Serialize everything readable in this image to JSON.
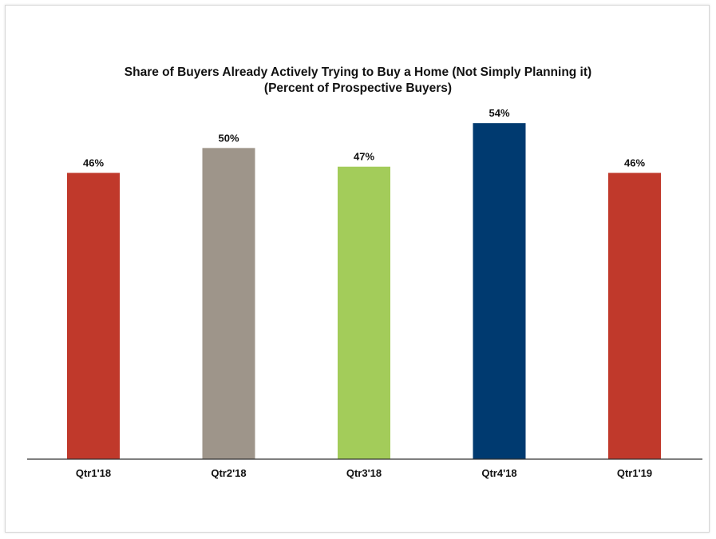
{
  "chart_data": {
    "type": "bar",
    "title": "Share of Buyers Already Actively Trying to Buy a Home (Not Simply Planning it)",
    "subtitle": "(Percent of Prospective Buyers)",
    "categories": [
      "Qtr1'18",
      "Qtr2'18",
      "Qtr3'18",
      "Qtr4'18",
      "Qtr1'19"
    ],
    "values": [
      46,
      50,
      47,
      54,
      46
    ],
    "value_labels": [
      "46%",
      "50%",
      "47%",
      "54%",
      "46%"
    ],
    "colors": [
      "#c0392b",
      "#9e958a",
      "#a3cc5a",
      "#003a70",
      "#c0392b"
    ],
    "ylim": [
      0,
      58
    ],
    "grid": false,
    "legend": "none"
  }
}
